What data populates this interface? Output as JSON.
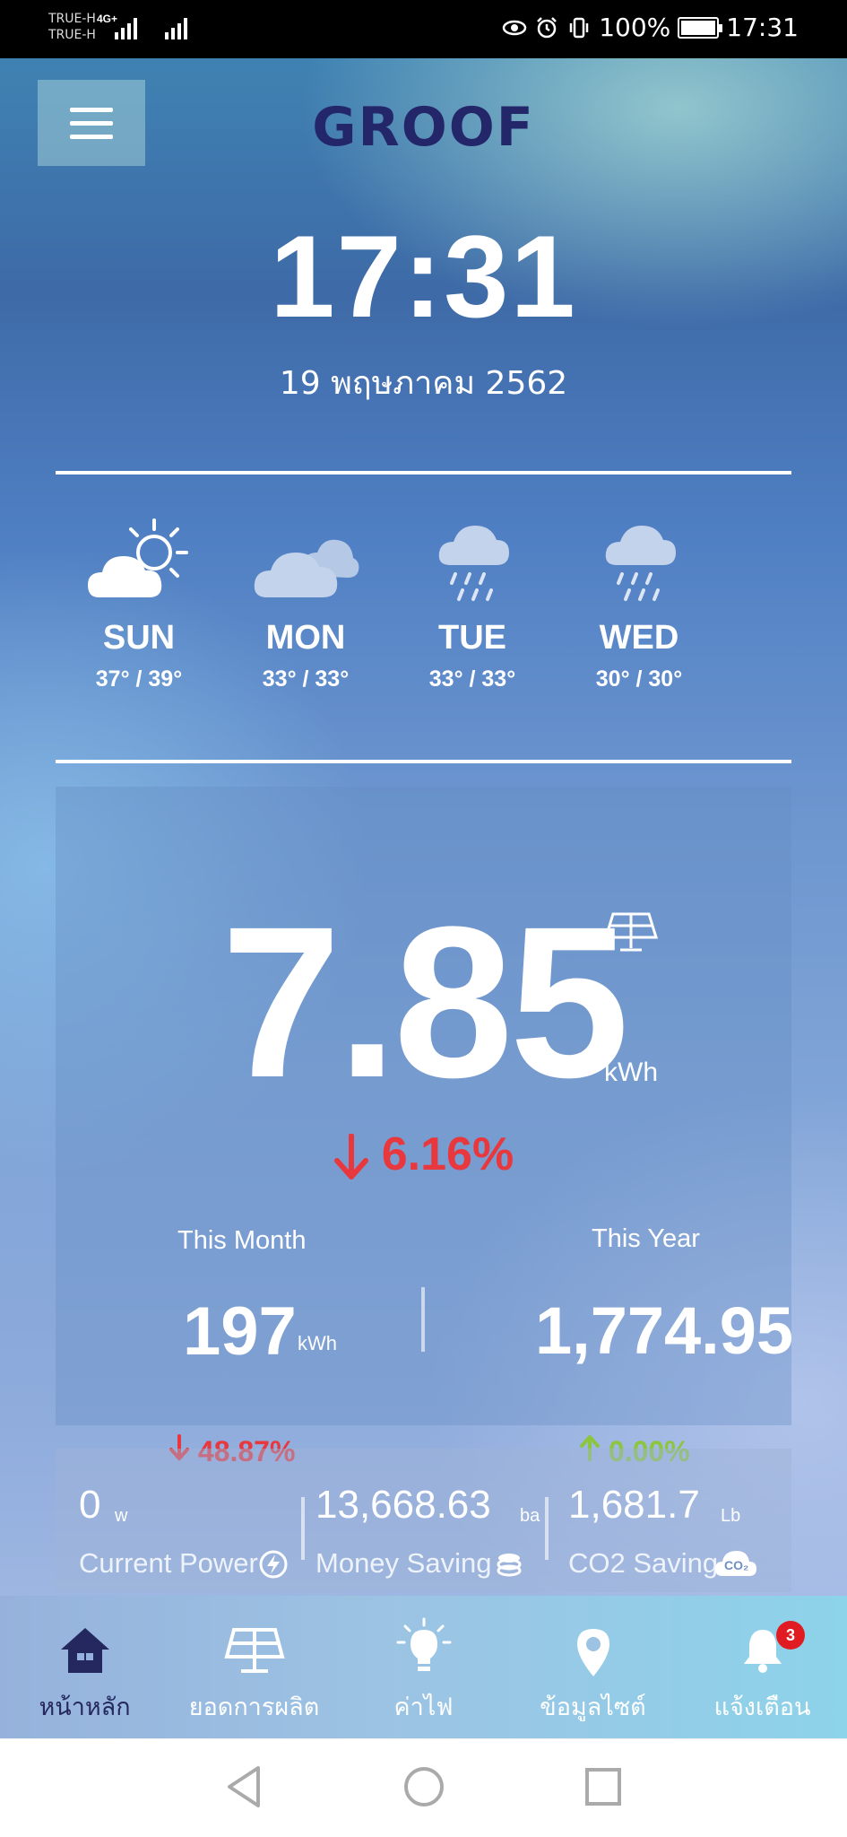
{
  "status_bar": {
    "carrier_1": "TRUE-H",
    "carrier_2": "TRUE-H",
    "network": "4G+",
    "battery": "100%",
    "time": "17:31"
  },
  "header": {
    "logo": "GROOF",
    "menu_icon": "hamburger-menu-icon"
  },
  "clock": {
    "time": "17:31",
    "date": "19 พฤษภาคม 2562"
  },
  "forecast": [
    {
      "day": "SUN",
      "temps": "37° / 39°",
      "icon": "partly-sunny-icon"
    },
    {
      "day": "MON",
      "temps": "33° / 33°",
      "icon": "cloudy-icon"
    },
    {
      "day": "TUE",
      "temps": "33° / 33°",
      "icon": "rain-icon"
    },
    {
      "day": "WED",
      "temps": "30° / 30°",
      "icon": "rain-icon"
    }
  ],
  "production": {
    "today_value": "7.85",
    "today_unit": "kWh",
    "today_change": "6.16%",
    "month_label": "This Month",
    "month_value": "197",
    "month_unit": "kWh",
    "month_change": "48.87%",
    "year_label": "This Year",
    "year_value": "1,774.95",
    "year_change": "0.00%"
  },
  "stats": {
    "current_power_value": "0",
    "current_power_unit": "w",
    "current_power_label": "Current Power",
    "money_saving_value": "13,668.63",
    "money_saving_unit": "ba",
    "money_saving_label": "Money Saving",
    "co2_saving_value": "1,681.7",
    "co2_saving_unit": "Lb",
    "co2_saving_label": "CO2 Saving",
    "co2_icon_text": "CO₂"
  },
  "bottom_nav": [
    {
      "label": "หน้าหลัก",
      "icon": "home-icon",
      "active": true
    },
    {
      "label": "ยอดการผลิต",
      "icon": "solar-panel-icon"
    },
    {
      "label": "ค่าไฟ",
      "icon": "light-bulb-icon"
    },
    {
      "label": "ข้อมูลไซต์",
      "icon": "location-pin-icon"
    },
    {
      "label": "แจ้งเตือน",
      "icon": "bell-icon",
      "badge": "3"
    }
  ],
  "colors": {
    "logo": "#24266a",
    "negative": "#e8383d",
    "positive": "#8cc63f",
    "active_nav": "#25285f"
  }
}
